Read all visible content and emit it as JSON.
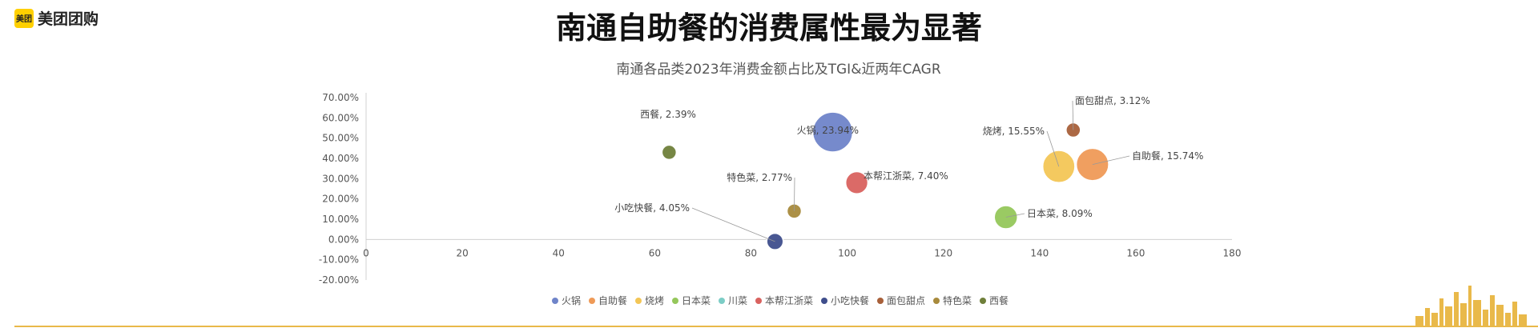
{
  "brand": {
    "badge": "美团",
    "name": "美团团购"
  },
  "page_title": "南通自助餐的消费属性最为显著",
  "colors": {
    "accent": "#e9b94a",
    "brand_yellow": "#ffd000"
  },
  "chart_data": {
    "type": "scatter",
    "title": "南通各品类2023年消费金额占比及TGI&近两年CAGR",
    "x_ticks": [
      0,
      20,
      40,
      60,
      80,
      100,
      120,
      140,
      160,
      180
    ],
    "y_ticks": [
      "70.00%",
      "60.00%",
      "50.00%",
      "40.00%",
      "30.00%",
      "20.00%",
      "10.00%",
      "0.00%",
      "-10.00%",
      "-20.00%"
    ],
    "xlim": [
      0,
      180
    ],
    "ylim": [
      -0.2,
      0.7
    ],
    "legend_position": "bottom",
    "series": [
      {
        "name": "火锅",
        "color": "#6f84c9",
        "x": 97,
        "y": 0.53,
        "size": 23.94,
        "label": "火锅, 23.94%"
      },
      {
        "name": "自助餐",
        "color": "#ef9a57",
        "x": 151,
        "y": 0.37,
        "size": 15.74,
        "label": "自助餐, 15.74%"
      },
      {
        "name": "烧烤",
        "color": "#f3c656",
        "x": 144,
        "y": 0.36,
        "size": 15.55,
        "label": "烧烤, 15.55%"
      },
      {
        "name": "日本菜",
        "color": "#95c75b",
        "x": 133,
        "y": 0.11,
        "size": 8.09,
        "label": "日本菜, 8.09%"
      },
      {
        "name": "川菜",
        "color": "#7ccdc6",
        "x": null,
        "y": null,
        "size": null,
        "label": ""
      },
      {
        "name": "本帮江浙菜",
        "color": "#d9625f",
        "x": 102,
        "y": 0.28,
        "size": 7.4,
        "label": "本帮江浙菜, 7.40%"
      },
      {
        "name": "小吃快餐",
        "color": "#3f4e8c",
        "x": 85,
        "y": -0.01,
        "size": 4.05,
        "label": "小吃快餐, 4.05%"
      },
      {
        "name": "面包甜点",
        "color": "#a8603a",
        "x": 147,
        "y": 0.54,
        "size": 3.12,
        "label": "面包甜点, 3.12%"
      },
      {
        "name": "特色菜",
        "color": "#a88a3c",
        "x": 89,
        "y": 0.14,
        "size": 2.77,
        "label": "特色菜, 2.77%"
      },
      {
        "name": "西餐",
        "color": "#6f7f3a",
        "x": 63,
        "y": 0.43,
        "size": 2.39,
        "label": "西餐, 2.39%"
      }
    ]
  }
}
